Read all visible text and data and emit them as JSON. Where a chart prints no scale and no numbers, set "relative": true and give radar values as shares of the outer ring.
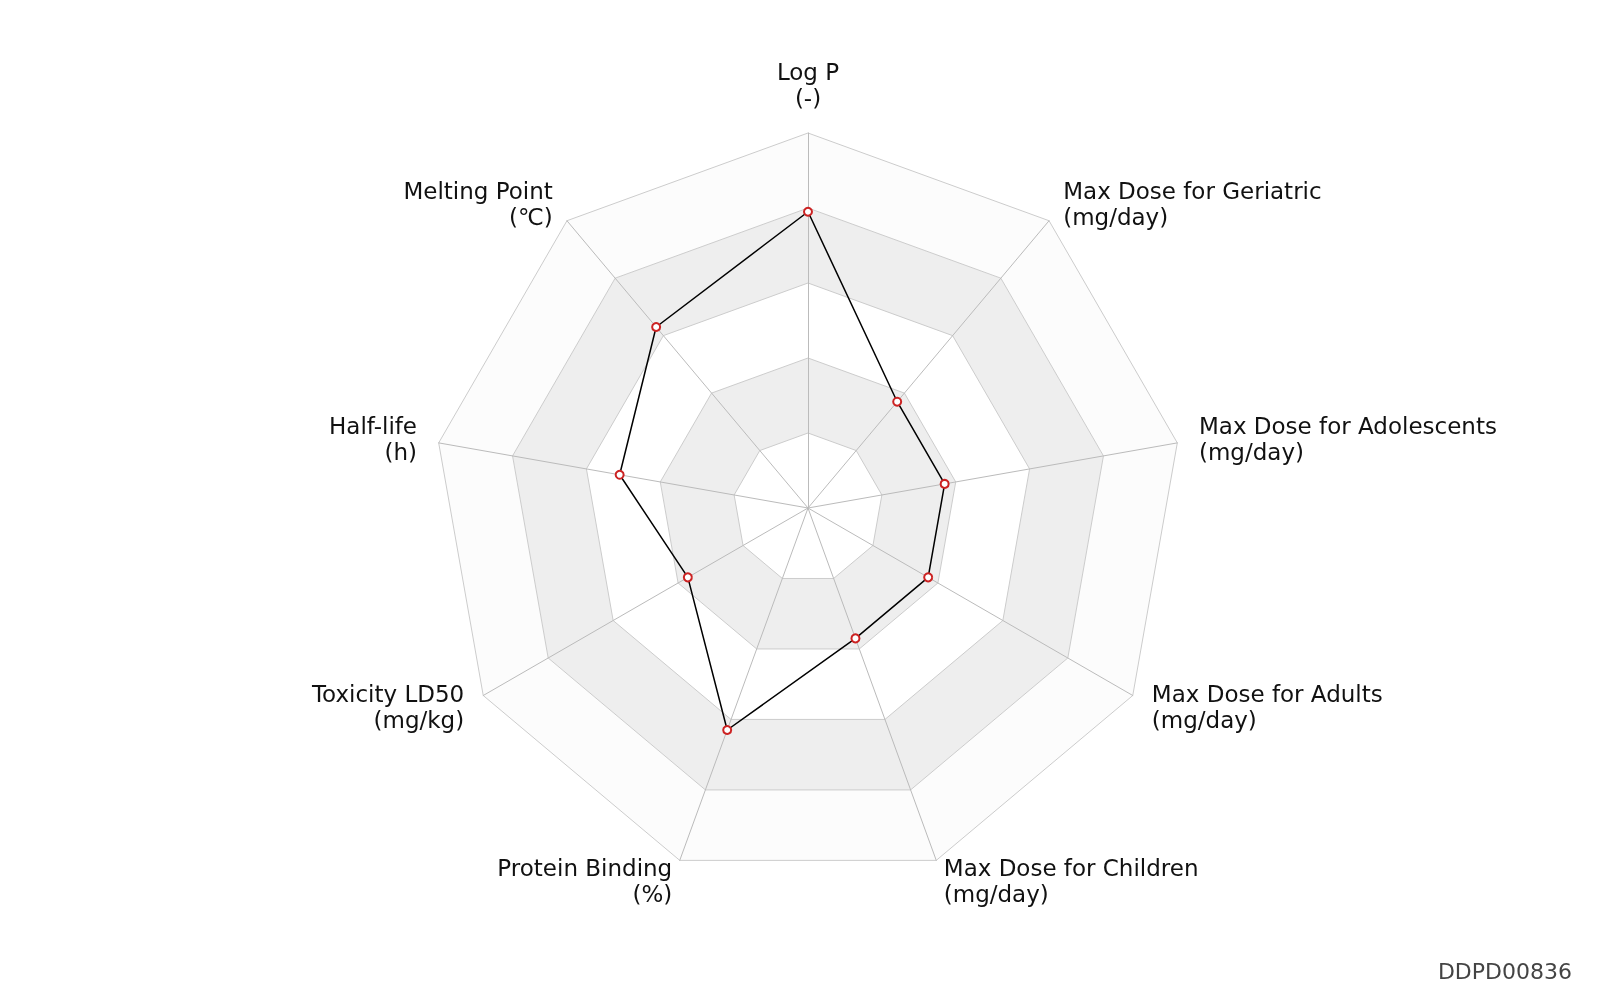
{
  "chart_data": {
    "type": "radar",
    "relative": true,
    "grid": true,
    "marker": "circle",
    "categories": [
      "Log P\n(-)",
      "Max Dose for Geriatric\n(mg/day)",
      "Max Dose for Adolescents\n(mg/day)",
      "Max Dose for Adults\n(mg/day)",
      "Max Dose for Children\n(mg/day)",
      "Protein Binding\n(%)",
      "Toxicity LD50\n(mg/kg)",
      "Half-life\n(h)",
      "Melting Point\n(℃)"
    ],
    "series": [
      {
        "color": "#000000",
        "values": [
          0.79,
          0.37,
          0.37,
          0.37,
          0.37,
          0.63,
          0.37,
          0.51,
          0.63
        ]
      }
    ],
    "annotations": [
      "DDPD00836"
    ]
  }
}
